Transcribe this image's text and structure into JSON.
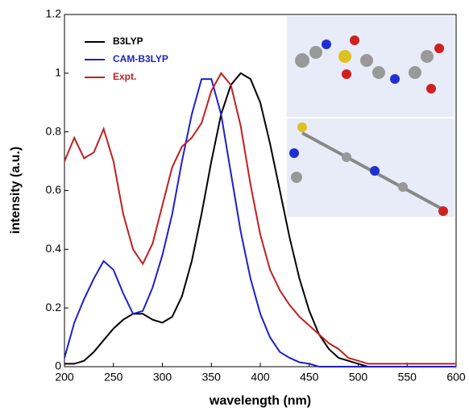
{
  "chart_data": {
    "type": "line",
    "x_label": "wavelength (nm)",
    "y_label": "intensity (a.u.)",
    "x": [
      200,
      210,
      220,
      230,
      240,
      250,
      260,
      270,
      280,
      290,
      300,
      310,
      320,
      330,
      340,
      350,
      360,
      370,
      380,
      390,
      400,
      410,
      420,
      430,
      440,
      450,
      460,
      470,
      480,
      490,
      500,
      510,
      520,
      530,
      540,
      550,
      560,
      570,
      580,
      590,
      600
    ],
    "series": [
      {
        "name": "B3LYP",
        "color": "#000000",
        "values": [
          0.01,
          0.01,
          0.02,
          0.05,
          0.09,
          0.13,
          0.16,
          0.18,
          0.18,
          0.16,
          0.15,
          0.17,
          0.24,
          0.36,
          0.52,
          0.7,
          0.86,
          0.96,
          1.0,
          0.98,
          0.9,
          0.76,
          0.6,
          0.44,
          0.3,
          0.19,
          0.11,
          0.06,
          0.03,
          0.02,
          0.01,
          0,
          0,
          0,
          0,
          0,
          0,
          0,
          0,
          0,
          0
        ]
      },
      {
        "name": "CAM-B3LYP",
        "color": "#1f1fc8",
        "values": [
          0.03,
          0.15,
          0.23,
          0.3,
          0.36,
          0.33,
          0.25,
          0.18,
          0.19,
          0.27,
          0.38,
          0.52,
          0.7,
          0.86,
          0.98,
          0.98,
          0.86,
          0.66,
          0.46,
          0.3,
          0.18,
          0.1,
          0.05,
          0.03,
          0.015,
          0.01,
          0,
          0,
          0,
          0,
          0,
          0,
          0,
          0,
          0,
          0,
          0,
          0,
          0,
          0,
          0
        ]
      },
      {
        "name": "Expt.",
        "color": "#c02020",
        "values": [
          0.7,
          0.78,
          0.71,
          0.73,
          0.81,
          0.7,
          0.52,
          0.4,
          0.35,
          0.42,
          0.55,
          0.68,
          0.75,
          0.78,
          0.83,
          0.94,
          1.0,
          0.96,
          0.82,
          0.62,
          0.45,
          0.33,
          0.26,
          0.21,
          0.17,
          0.14,
          0.11,
          0.08,
          0.06,
          0.03,
          0.02,
          0.01,
          0.01,
          0.01,
          0.01,
          0.01,
          0.01,
          0.01,
          0.01,
          0.01,
          0.01
        ]
      }
    ],
    "xlim": [
      200,
      600
    ],
    "xticks": [
      200,
      250,
      300,
      350,
      400,
      450,
      500,
      550,
      600
    ],
    "ylim": [
      0,
      1.2
    ],
    "yticks": [
      0,
      0.2,
      0.4,
      0.6,
      0.8,
      1,
      1.2
    ],
    "legend": "upper left"
  }
}
